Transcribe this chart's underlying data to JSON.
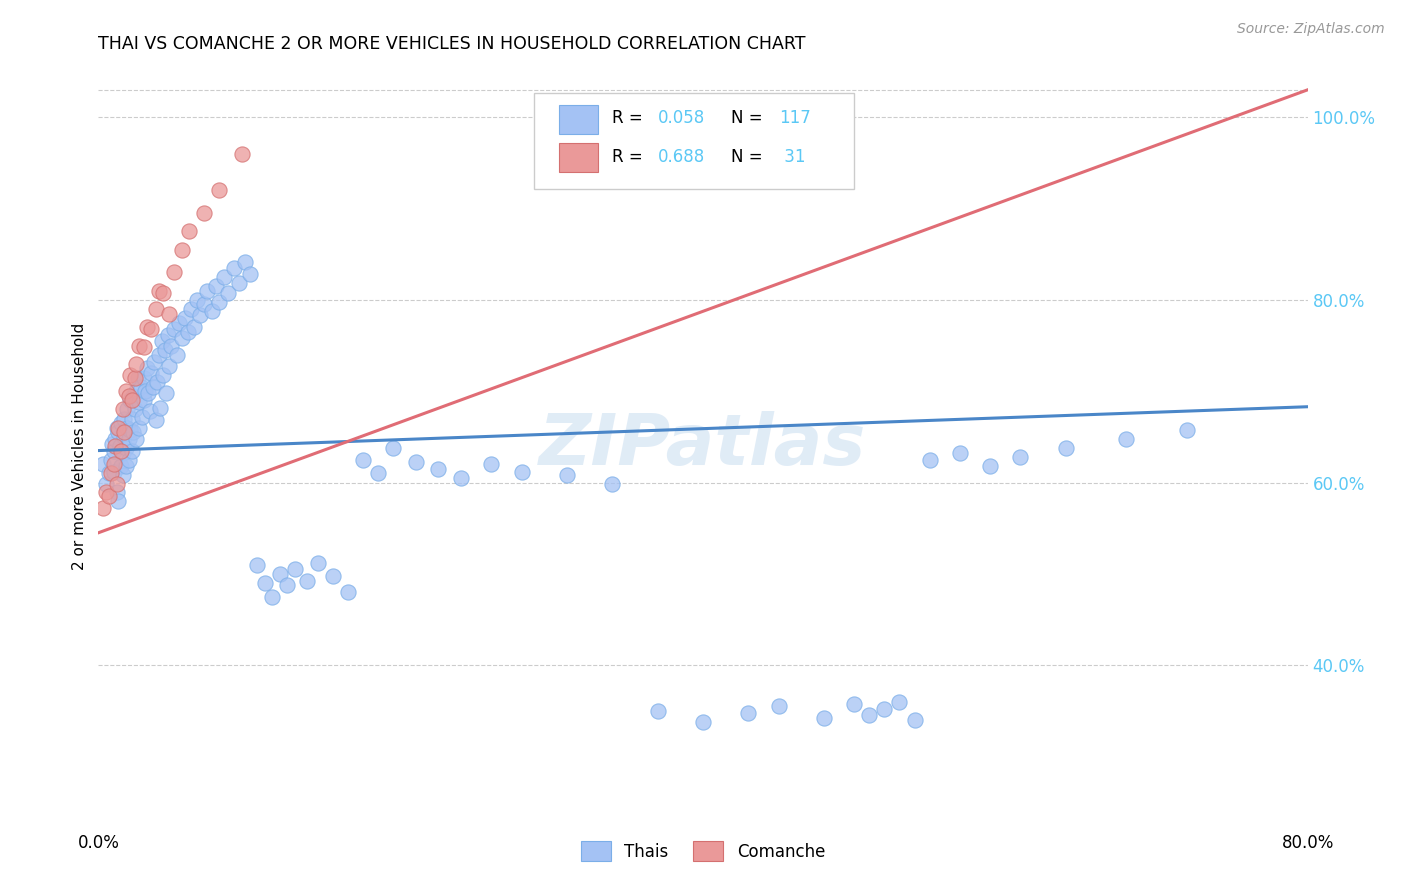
{
  "title": "THAI VS COMANCHE 2 OR MORE VEHICLES IN HOUSEHOLD CORRELATION CHART",
  "source": "Source: ZipAtlas.com",
  "ylabel": "2 or more Vehicles in Household",
  "xlim": [
    0.0,
    0.8
  ],
  "ylim": [
    0.22,
    1.06
  ],
  "x_tick_positions": [
    0.0,
    0.1,
    0.2,
    0.3,
    0.4,
    0.5,
    0.6,
    0.7,
    0.8
  ],
  "x_tick_labels": [
    "0.0%",
    "",
    "",
    "",
    "",
    "",
    "",
    "",
    "80.0%"
  ],
  "y_ticks_right": [
    0.4,
    0.6,
    0.8,
    1.0
  ],
  "y_tick_labels_right": [
    "40.0%",
    "60.0%",
    "80.0%",
    "100.0%"
  ],
  "blue_color": "#a4c2f4",
  "pink_color": "#ea9999",
  "line_blue": "#4a86c8",
  "line_pink": "#e06c75",
  "watermark": "ZIPatlas",
  "blue_line_x0": 0.0,
  "blue_line_y0": 0.635,
  "blue_line_x1": 0.8,
  "blue_line_y1": 0.683,
  "pink_line_x0": 0.0,
  "pink_line_y0": 0.545,
  "pink_line_x1": 0.8,
  "pink_line_y1": 1.03,
  "thais_x": [
    0.003,
    0.005,
    0.007,
    0.008,
    0.009,
    0.01,
    0.01,
    0.011,
    0.012,
    0.012,
    0.013,
    0.013,
    0.014,
    0.015,
    0.015,
    0.016,
    0.016,
    0.017,
    0.017,
    0.018,
    0.018,
    0.019,
    0.019,
    0.02,
    0.02,
    0.021,
    0.021,
    0.022,
    0.022,
    0.023,
    0.023,
    0.024,
    0.025,
    0.025,
    0.026,
    0.027,
    0.027,
    0.028,
    0.029,
    0.03,
    0.03,
    0.031,
    0.032,
    0.033,
    0.034,
    0.035,
    0.036,
    0.037,
    0.038,
    0.039,
    0.04,
    0.041,
    0.042,
    0.043,
    0.044,
    0.045,
    0.046,
    0.047,
    0.048,
    0.05,
    0.052,
    0.053,
    0.055,
    0.057,
    0.059,
    0.061,
    0.063,
    0.065,
    0.067,
    0.07,
    0.072,
    0.075,
    0.078,
    0.08,
    0.083,
    0.086,
    0.09,
    0.093,
    0.097,
    0.1,
    0.105,
    0.11,
    0.115,
    0.12,
    0.125,
    0.13,
    0.138,
    0.145,
    0.155,
    0.165,
    0.175,
    0.185,
    0.195,
    0.21,
    0.225,
    0.24,
    0.26,
    0.28,
    0.31,
    0.34,
    0.37,
    0.4,
    0.43,
    0.45,
    0.48,
    0.5,
    0.51,
    0.52,
    0.53,
    0.54,
    0.55,
    0.57,
    0.59,
    0.61,
    0.64,
    0.68,
    0.72
  ],
  "thais_y": [
    0.62,
    0.598,
    0.61,
    0.625,
    0.642,
    0.635,
    0.612,
    0.648,
    0.59,
    0.66,
    0.58,
    0.655,
    0.64,
    0.618,
    0.665,
    0.632,
    0.608,
    0.65,
    0.67,
    0.638,
    0.618,
    0.66,
    0.68,
    0.648,
    0.625,
    0.69,
    0.658,
    0.67,
    0.635,
    0.695,
    0.655,
    0.68,
    0.7,
    0.648,
    0.715,
    0.688,
    0.66,
    0.705,
    0.672,
    0.715,
    0.69,
    0.7,
    0.725,
    0.698,
    0.678,
    0.72,
    0.705,
    0.732,
    0.668,
    0.71,
    0.74,
    0.682,
    0.755,
    0.718,
    0.745,
    0.698,
    0.762,
    0.728,
    0.75,
    0.768,
    0.74,
    0.775,
    0.758,
    0.78,
    0.765,
    0.79,
    0.77,
    0.8,
    0.783,
    0.795,
    0.81,
    0.788,
    0.815,
    0.798,
    0.825,
    0.808,
    0.835,
    0.818,
    0.842,
    0.828,
    0.51,
    0.49,
    0.475,
    0.5,
    0.488,
    0.505,
    0.492,
    0.512,
    0.498,
    0.48,
    0.625,
    0.61,
    0.638,
    0.622,
    0.615,
    0.605,
    0.62,
    0.612,
    0.608,
    0.598,
    0.35,
    0.338,
    0.348,
    0.355,
    0.342,
    0.358,
    0.345,
    0.352,
    0.36,
    0.34,
    0.625,
    0.632,
    0.618,
    0.628,
    0.638,
    0.648,
    0.658
  ],
  "comanche_x": [
    0.003,
    0.005,
    0.007,
    0.008,
    0.01,
    0.011,
    0.012,
    0.013,
    0.015,
    0.016,
    0.017,
    0.018,
    0.02,
    0.021,
    0.022,
    0.024,
    0.025,
    0.027,
    0.03,
    0.032,
    0.035,
    0.038,
    0.04,
    0.043,
    0.047,
    0.05,
    0.055,
    0.06,
    0.07,
    0.08,
    0.095
  ],
  "comanche_y": [
    0.572,
    0.59,
    0.585,
    0.61,
    0.62,
    0.64,
    0.598,
    0.66,
    0.635,
    0.68,
    0.655,
    0.7,
    0.695,
    0.718,
    0.69,
    0.715,
    0.73,
    0.75,
    0.748,
    0.77,
    0.768,
    0.79,
    0.81,
    0.808,
    0.785,
    0.83,
    0.855,
    0.875,
    0.895,
    0.92,
    0.96
  ]
}
